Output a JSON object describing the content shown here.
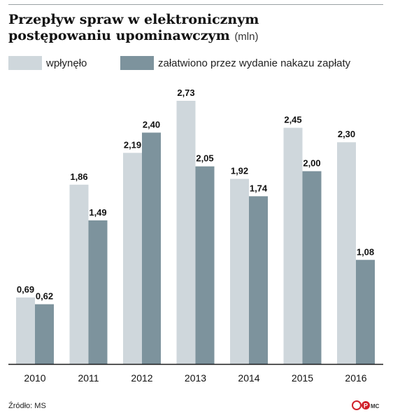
{
  "header": {
    "title_line1": "Przepływ spraw w elektronicznym",
    "title_line2": "postępowaniu upominawczym",
    "unit": "(mln)"
  },
  "colors": {
    "series1": "#cfd7dc",
    "series2": "#7d939d",
    "axis": "#1a1a1a",
    "logo": "#d0202a"
  },
  "chart_data": {
    "type": "bar",
    "title": "Przepływ spraw w elektronicznym postępowaniu upominawczym",
    "unit": "(mln)",
    "categories": [
      "2010",
      "2011",
      "2012",
      "2013",
      "2014",
      "2015",
      "2016"
    ],
    "series": [
      {
        "name": "wpłynęło",
        "values": [
          0.69,
          1.86,
          2.19,
          2.73,
          1.92,
          2.45,
          2.3
        ],
        "labels": [
          "0,69",
          "1,86",
          "2,19",
          "2,73",
          "1,92",
          "2,45",
          "2,30"
        ]
      },
      {
        "name": "załatwiono przez wydanie nakazu zapłaty",
        "values": [
          0.62,
          1.49,
          2.4,
          2.05,
          1.74,
          2.0,
          1.08
        ],
        "labels": [
          "0,62",
          "1,49",
          "2,40",
          "2,05",
          "1,74",
          "2,00",
          "1,08"
        ]
      }
    ],
    "ylim": [
      0,
      2.73
    ],
    "grid": false,
    "legend": "top-left"
  },
  "footer": {
    "source": "Źródło: MS",
    "logo": "cP",
    "initials": "MC"
  }
}
